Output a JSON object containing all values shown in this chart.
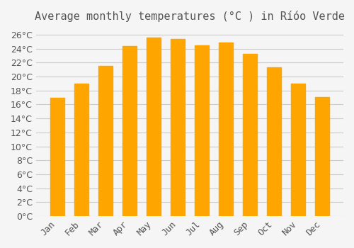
{
  "months": [
    "Jan",
    "Feb",
    "Mar",
    "Apr",
    "May",
    "Jun",
    "Jul",
    "Aug",
    "Sep",
    "Oct",
    "Nov",
    "Dec"
  ],
  "temperatures": [
    17.0,
    19.0,
    21.5,
    24.4,
    25.6,
    25.4,
    24.5,
    24.9,
    23.3,
    21.3,
    19.0,
    17.1
  ],
  "bar_color": "#FFA500",
  "bar_color_bottom": "#FFD700",
  "title": "Average monthly temperatures (°C ) in Ríóo Verde",
  "ylim": [
    0,
    27
  ],
  "ytick_step": 2,
  "background_color": "#f5f5f5",
  "grid_color": "#cccccc",
  "font_color": "#555555",
  "title_fontsize": 11,
  "tick_fontsize": 9
}
